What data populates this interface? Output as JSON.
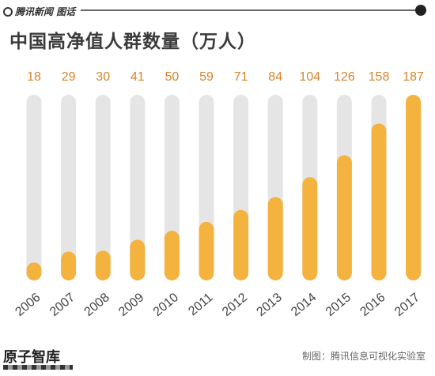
{
  "header": {
    "brand": "腾讯新闻 图话",
    "title": "中国高净值人群数量（万人）"
  },
  "footer": {
    "logo": "原子智库",
    "credit": "制图：腾讯信息可视化实验室"
  },
  "colors": {
    "bar_fill": "#F4B23E",
    "bar_track": "#E5E5E5",
    "value_label": "#D9822B",
    "axis_label": "#444444"
  },
  "chart_data": {
    "type": "bar",
    "title": "中国高净值人群数量（万人）",
    "categories": [
      "2006",
      "2007",
      "2008",
      "2009",
      "2010",
      "2011",
      "2012",
      "2013",
      "2014",
      "2015",
      "2016",
      "2017"
    ],
    "values": [
      18,
      29,
      30,
      41,
      50,
      59,
      71,
      84,
      104,
      126,
      158,
      187
    ],
    "ylim": [
      0,
      187
    ],
    "xlabel": "",
    "ylabel": "",
    "grid": false,
    "legend": "none"
  }
}
